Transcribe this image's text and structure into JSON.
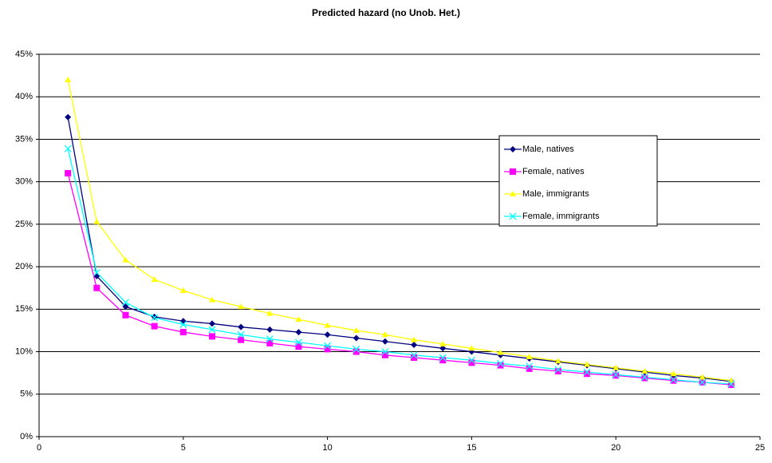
{
  "chart_data": {
    "type": "line",
    "title": "Predicted hazard (no Unob. Het.)",
    "x": [
      1,
      2,
      3,
      4,
      5,
      6,
      7,
      8,
      9,
      10,
      11,
      12,
      13,
      14,
      15,
      16,
      17,
      18,
      19,
      20,
      21,
      22,
      23,
      24
    ],
    "series": [
      {
        "name": "Male, natives",
        "color": "#000080",
        "marker": "diamond",
        "values": [
          37.6,
          18.9,
          15.3,
          14.1,
          13.6,
          13.3,
          12.9,
          12.6,
          12.3,
          12.0,
          11.6,
          11.2,
          10.8,
          10.4,
          10.0,
          9.6,
          9.2,
          8.8,
          8.4,
          8.0,
          7.6,
          7.2,
          6.9,
          6.5
        ]
      },
      {
        "name": "Female, natives",
        "color": "#ff00ff",
        "marker": "square",
        "values": [
          31.0,
          17.5,
          14.3,
          13.0,
          12.3,
          11.8,
          11.4,
          11.0,
          10.6,
          10.3,
          10.0,
          9.6,
          9.3,
          9.0,
          8.7,
          8.4,
          8.0,
          7.7,
          7.4,
          7.2,
          6.9,
          6.6,
          6.4,
          6.1
        ]
      },
      {
        "name": "Male, immigrants",
        "color": "#ffff00",
        "marker": "triangle",
        "values": [
          42.0,
          25.3,
          20.8,
          18.5,
          17.2,
          16.1,
          15.3,
          14.5,
          13.8,
          13.1,
          12.5,
          12.0,
          11.4,
          10.9,
          10.4,
          9.9,
          9.4,
          8.9,
          8.5,
          8.1,
          7.7,
          7.4,
          7.0,
          6.6
        ]
      },
      {
        "name": "Female, immigrants",
        "color": "#00ffff",
        "marker": "cross",
        "values": [
          33.9,
          19.3,
          15.8,
          14.0,
          13.2,
          12.6,
          12.0,
          11.5,
          11.1,
          10.7,
          10.3,
          10.0,
          9.6,
          9.3,
          9.0,
          8.6,
          8.3,
          7.9,
          7.6,
          7.3,
          7.0,
          6.7,
          6.4,
          6.2
        ]
      }
    ],
    "xlim": [
      0,
      25
    ],
    "xticks": [
      0,
      5,
      10,
      15,
      20,
      25
    ],
    "ylim": [
      0,
      45
    ],
    "yticks": [
      {
        "value": 0,
        "label": "0%"
      },
      {
        "value": 5,
        "label": "5%"
      },
      {
        "value": 10,
        "label": "10%"
      },
      {
        "value": 15,
        "label": "15%"
      },
      {
        "value": 20,
        "label": "20%"
      },
      {
        "value": 25,
        "label": "25%"
      },
      {
        "value": 30,
        "label": "30%"
      },
      {
        "value": 35,
        "label": "35%"
      },
      {
        "value": 40,
        "label": "40%"
      },
      {
        "value": 45,
        "label": "45%"
      }
    ],
    "grid": true,
    "legend": "right"
  }
}
